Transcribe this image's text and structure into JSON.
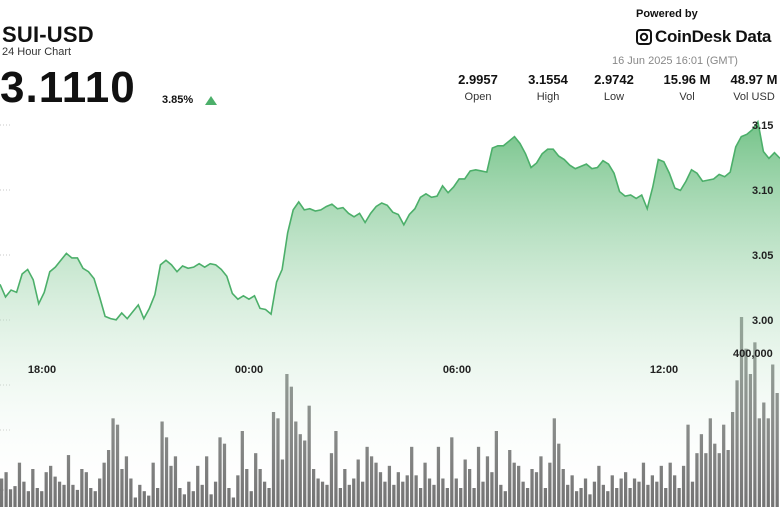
{
  "header": {
    "pair": "SUI-USD",
    "subtitle": "24 Hour Chart",
    "price": "3.1110",
    "change": "3.85%",
    "powered_by": "Powered by",
    "brand": "CoinDesk Data",
    "timestamp": "16 Jun 2025 16:01 (GMT)"
  },
  "stats": [
    {
      "value": "2.9957",
      "label": "Open"
    },
    {
      "value": "3.1554",
      "label": "High"
    },
    {
      "value": "2.9742",
      "label": "Low"
    },
    {
      "value": "15.96 M",
      "label": "Vol"
    },
    {
      "value": "48.97 M",
      "label": "Vol USD"
    }
  ],
  "colors": {
    "line": "#4caf6a",
    "area_top": "#7cc68d",
    "volume": "#5b5b5b",
    "up_triangle": "#4caf6a"
  },
  "chart_data": {
    "type": "area",
    "x_ticks": [
      "18:00",
      "00:00",
      "06:00",
      "12:00"
    ],
    "y_ticks": [
      "3.15",
      "3.10",
      "3.05",
      "3.00"
    ],
    "vol_ticks": [
      "400,000"
    ],
    "y_range": [
      2.96,
      3.16
    ],
    "price_series": [
      3.013,
      3.002,
      3.008,
      3.006,
      3.022,
      3.026,
      3.017,
      2.996,
      3.006,
      3.024,
      3.028,
      3.034,
      3.04,
      3.036,
      3.036,
      3.027,
      3.024,
      3.018,
      3.002,
      2.985,
      2.983,
      2.982,
      2.988,
      2.983,
      2.989,
      2.995,
      2.983,
      2.992,
      3.004,
      3.03,
      3.034,
      3.03,
      3.024,
      3.029,
      3.027,
      3.028,
      3.031,
      3.028,
      3.031,
      3.03,
      3.026,
      3.02,
      3.005,
      3.0,
      3.003,
      3.0,
      3.003,
      2.992,
      2.991,
      2.987,
      3.015,
      3.026,
      3.058,
      3.078,
      3.085,
      3.078,
      3.079,
      3.077,
      3.078,
      3.081,
      3.083,
      3.079,
      3.08,
      3.075,
      3.072,
      3.075,
      3.067,
      3.075,
      3.081,
      3.084,
      3.082,
      3.076,
      3.074,
      3.065,
      3.074,
      3.079,
      3.089,
      3.092,
      3.089,
      3.09,
      3.099,
      3.093,
      3.098,
      3.105,
      3.105,
      3.112,
      3.113,
      3.112,
      3.111,
      3.132,
      3.134,
      3.134,
      3.138,
      3.142,
      3.136,
      3.127,
      3.115,
      3.119,
      3.127,
      3.131,
      3.131,
      3.125,
      3.122,
      3.117,
      3.114,
      3.116,
      3.118,
      3.114,
      3.115,
      3.121,
      3.118,
      3.11,
      3.094,
      3.09,
      3.091,
      3.088,
      3.091,
      3.079,
      3.098,
      3.122,
      3.12,
      3.11,
      3.097,
      3.095,
      3.103,
      3.113,
      3.11,
      3.103,
      3.104,
      3.105,
      3.109,
      3.107,
      3.111,
      3.133,
      3.142,
      3.144,
      3.148,
      3.155,
      3.129,
      3.123,
      3.128,
      3.123
    ],
    "volume_series": [
      45,
      55,
      28,
      33,
      70,
      40,
      25,
      60,
      30,
      25,
      55,
      65,
      48,
      40,
      35,
      82,
      35,
      27,
      60,
      55,
      30,
      25,
      45,
      70,
      90,
      140,
      130,
      60,
      80,
      45,
      15,
      35,
      25,
      18,
      70,
      30,
      135,
      110,
      65,
      80,
      30,
      20,
      40,
      25,
      65,
      35,
      80,
      20,
      40,
      110,
      100,
      30,
      15,
      50,
      120,
      60,
      25,
      85,
      60,
      40,
      30,
      150,
      140,
      75,
      210,
      190,
      135,
      115,
      105,
      160,
      60,
      45,
      40,
      35,
      85,
      120,
      30,
      60,
      35,
      45,
      75,
      40,
      95,
      80,
      70,
      55,
      40,
      65,
      35,
      55,
      40,
      50,
      95,
      50,
      30,
      70,
      45,
      35,
      95,
      45,
      30,
      110,
      45,
      30,
      75,
      60,
      30,
      95,
      40,
      80,
      55,
      120,
      35,
      25,
      90,
      70,
      65,
      40,
      30,
      60,
      55,
      80,
      30,
      70,
      140,
      100,
      60,
      35,
      50,
      25,
      30,
      45,
      20,
      40,
      65,
      35,
      25,
      50,
      30,
      45,
      55,
      30,
      45,
      40,
      70,
      35,
      50,
      40,
      65,
      30,
      70,
      50,
      30,
      65,
      130,
      40,
      85,
      115,
      85,
      140,
      100,
      85,
      130,
      90,
      150,
      200,
      300,
      250,
      210,
      260,
      140,
      165,
      140,
      225,
      180
    ],
    "volume_scale_max": 560000
  }
}
